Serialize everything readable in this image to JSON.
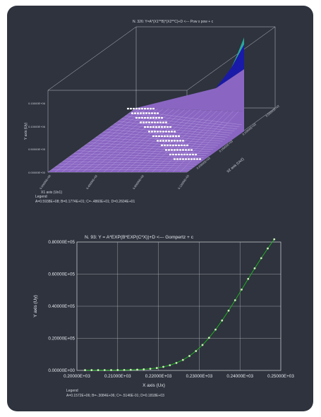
{
  "chart_data": [
    {
      "type": "surface3d",
      "title": "N. 326:  Y=A*(X1**B)*(X2**C)+D <--- Pow x pow + c",
      "xlabel": "X1 axis (Ux1)",
      "ylabel": "Y axis (Uy)",
      "zlabel": "X2 axis (Ux2)",
      "y_ticks": [
        "0.00000E+00",
        "0.50000E+05",
        "0.10000E+06",
        "0.15000E+06"
      ],
      "x1_ticks": [
        "0.00000E+00",
        "0.40000E+02",
        "0.80000E+02",
        "0.12000E+03"
      ],
      "x2_ticks": [
        "0.20000E+03",
        "0.15000E+03",
        "0.10000E+03",
        "0.50000E+02"
      ],
      "legend_title": "Legend",
      "legend_text": "A=0.5938E+08;  B=0.1774E+01;  C=-.4860E+01;  D=0.2604E+01",
      "colors": {
        "surface": "#8a66c2",
        "peak": "#1a1aa8",
        "peak_edge": "#2aa89a",
        "mesh": "#c9b8ef",
        "points": "#ffffff"
      }
    },
    {
      "type": "line",
      "title": "N.  93:   Y = A*EXP(B*EXP(C*X))+D <--- Gompertz + c",
      "xlabel": "X axis (Ux)",
      "ylabel": "Y axis (Uy)",
      "xlim": [
        200,
        250
      ],
      "ylim": [
        0,
        80000
      ],
      "x_ticks": [
        "0.20000E+03",
        "0.21000E+03",
        "0.22000E+03",
        "0.23000E+03",
        "0.24000E+03",
        "0.25000E+03"
      ],
      "y_ticks": [
        "0.00000E+00",
        "0.20000E+05",
        "0.40000E+05",
        "0.60000E+05",
        "0.80000E+05"
      ],
      "legend_title": "Legend",
      "legend_text": "A=0.1572E+06;  B=-.3084E+06;  C=-.5146E-01;  D=0.1818E+03",
      "grid": true,
      "series": [
        {
          "x": [
            202,
            203.6,
            205.2,
            206.8,
            208.4,
            210,
            211.6,
            213.2,
            214.8,
            216.4,
            218,
            219.6,
            221.2,
            222.8,
            224.4,
            226,
            227.6,
            229.2,
            230.8,
            232.4,
            234,
            235.6,
            237.2,
            238.8,
            240.4,
            242,
            243.6,
            245.2,
            246.8,
            248.4
          ],
          "y": [
            183,
            185,
            189,
            197,
            211,
            237,
            283,
            360,
            489,
            696,
            1019,
            1509,
            2228,
            3250,
            4661,
            6550,
            9003,
            12090,
            15860,
            20320,
            25430,
            31120,
            37260,
            43720,
            50370,
            57040,
            63600,
            69950,
            76000,
            81700
          ]
        }
      ],
      "colors": {
        "line": "#1faf1f",
        "marker": "#c8f2b4",
        "grid": "#d0d0d0"
      }
    }
  ]
}
